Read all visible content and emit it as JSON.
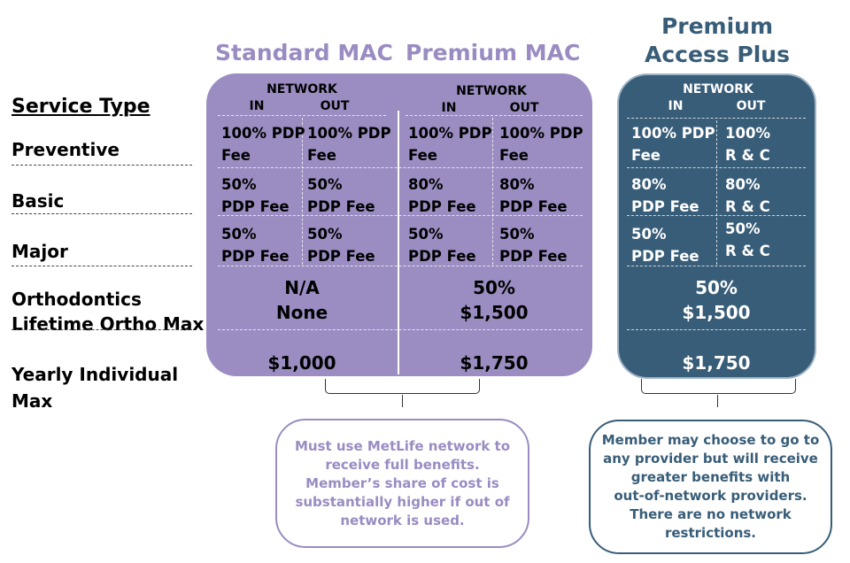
{
  "plans": {
    "standard": {
      "title": "Standard MAC"
    },
    "premium": {
      "title": "Premium MAC"
    },
    "plus": {
      "title_line1": "Premium",
      "title_line2": "Access Plus"
    }
  },
  "service_types": {
    "heading": "Service Type",
    "preventive": "Preventive",
    "basic": "Basic",
    "major": "Major",
    "ortho_line1": "Orthodontics",
    "ortho_line2": "Lifetime Ortho Max",
    "yearly_line1": "Yearly Individual",
    "yearly_line2": "Max"
  },
  "network_header": {
    "network": "NETWORK",
    "in": "IN",
    "out": "OUT"
  },
  "standard_values": {
    "preventive_in": [
      "100% PDP",
      "Fee"
    ],
    "preventive_out": [
      "100% PDP",
      "Fee"
    ],
    "basic_in": [
      "50%",
      "PDP Fee"
    ],
    "basic_out": [
      "50%",
      "PDP Fee"
    ],
    "major_in": [
      "50%",
      "PDP Fee"
    ],
    "major_out": [
      "50%",
      "PDP Fee"
    ],
    "ortho": "N/A",
    "ortho_max": "None",
    "yearly_max": "$1,000"
  },
  "premium_values": {
    "preventive_in": [
      "100% PDP",
      "Fee"
    ],
    "preventive_out": [
      "100% PDP",
      "Fee"
    ],
    "basic_in": [
      "80%",
      "PDP Fee"
    ],
    "basic_out": [
      "80%",
      "PDP Fee"
    ],
    "major_in": [
      "50%",
      "PDP Fee"
    ],
    "major_out": [
      "50%",
      "PDP Fee"
    ],
    "ortho": "50%",
    "ortho_max": "$1,500",
    "yearly_max": "$1,750"
  },
  "plus_values": {
    "preventive_in": [
      "100% PDP",
      "Fee"
    ],
    "preventive_out": [
      "100%",
      "R & C"
    ],
    "basic_in": [
      "80%",
      "PDP Fee"
    ],
    "basic_out": [
      "80%",
      "R & C"
    ],
    "major_in": [
      "50%",
      "PDP Fee"
    ],
    "major_out": [
      "50%",
      "R & C"
    ],
    "ortho": "50%",
    "ortho_max": "$1,500",
    "yearly_max": "$1,750"
  },
  "notes": {
    "mac": [
      "Must use MetLife network to",
      "receive full benefits.",
      "Member’s share of cost is",
      "substantially higher if out of",
      "network is used."
    ],
    "plus": [
      "Member may choose to go to",
      "any provider but will receive",
      "greater benefits with",
      "out-of-network providers.",
      "There are no network",
      "restrictions."
    ]
  },
  "colors": {
    "purple_panel": "#9b8dc1",
    "purple_text": "#9a8cc2",
    "dark_panel": "#385d78"
  }
}
